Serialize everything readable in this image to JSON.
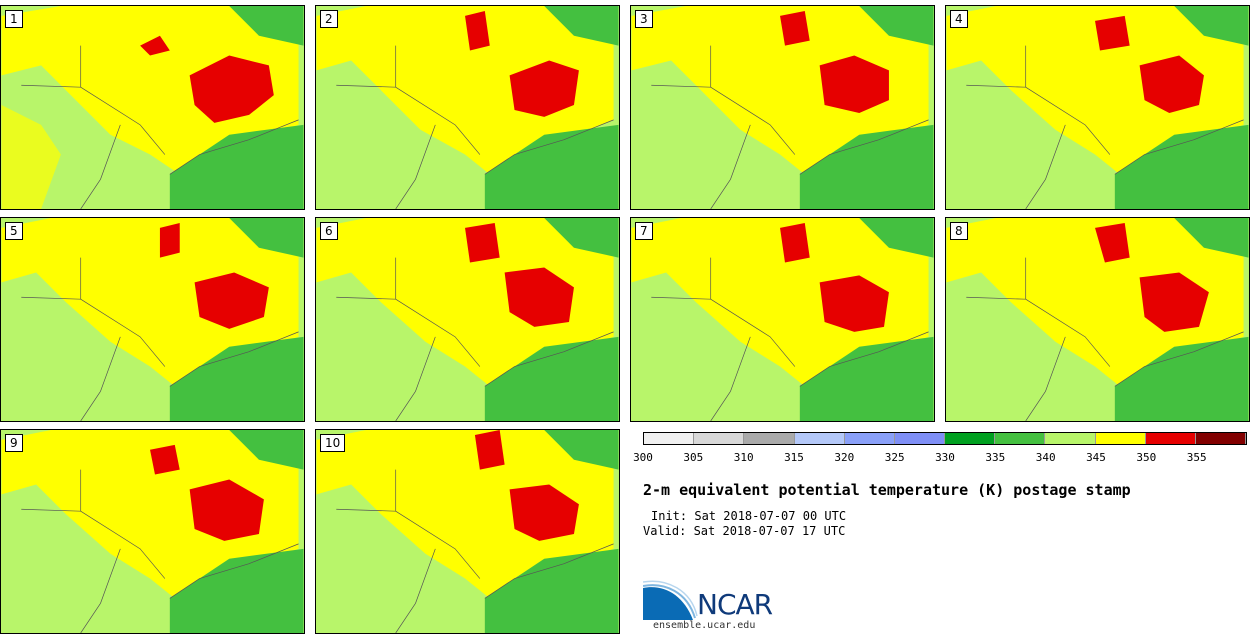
{
  "panels": [
    {
      "label": "1"
    },
    {
      "label": "2"
    },
    {
      "label": "3"
    },
    {
      "label": "4"
    },
    {
      "label": "5"
    },
    {
      "label": "6"
    },
    {
      "label": "7"
    },
    {
      "label": "8"
    },
    {
      "label": "9"
    },
    {
      "label": "10"
    }
  ],
  "colorbar": {
    "colors": [
      "#f0f0f0",
      "#d8d8d8",
      "#aaaaaa",
      "#b4c8f8",
      "#8aa0f8",
      "#7f8ff6",
      "#00a020",
      "#44c040",
      "#b8f56a",
      "#ffff00",
      "#e60000",
      "#820000"
    ],
    "ticks": [
      "300",
      "305",
      "310",
      "315",
      "320",
      "325",
      "330",
      "335",
      "340",
      "345",
      "350",
      "355"
    ]
  },
  "title": "2-m equivalent potential temperature (K) postage stamp",
  "init": "Init: Sat 2018-07-07 00 UTC",
  "valid": "Valid: Sat 2018-07-07 17 UTC",
  "logo": {
    "text": "NCAR",
    "url": "ensemble.ucar.edu"
  }
}
